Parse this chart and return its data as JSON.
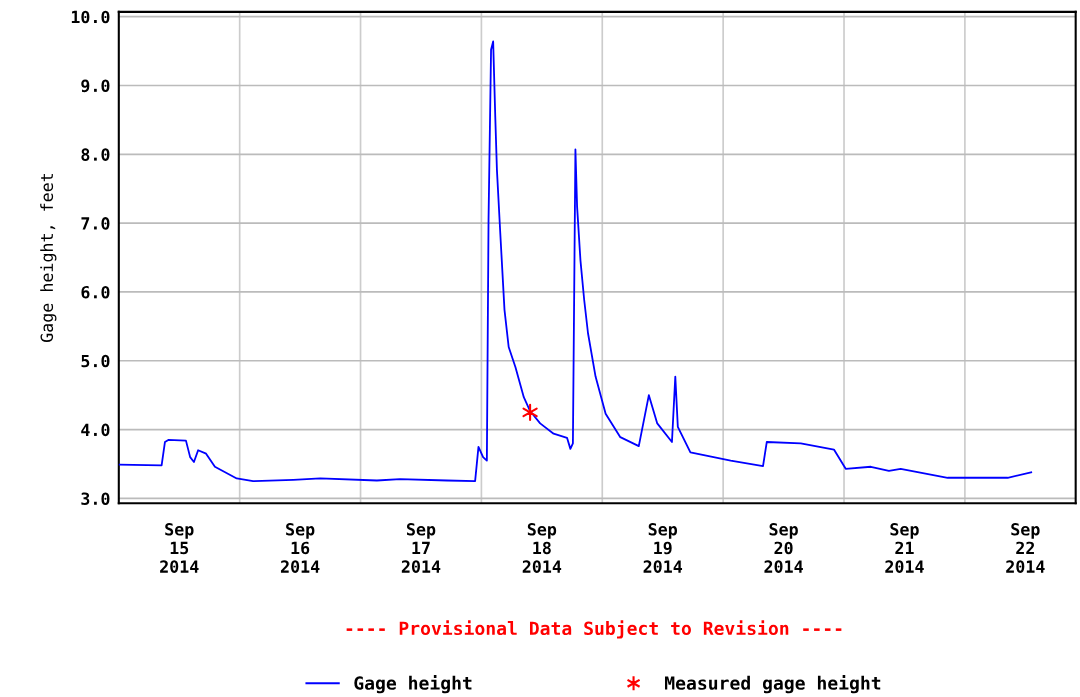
{
  "chart_data": {
    "type": "line",
    "ylabel": "Gage height, feet",
    "annotations": [
      "---- Provisional Data Subject to Revision ----"
    ],
    "xlim": [
      "2014-09-15T00:00",
      "2014-09-22T22:00"
    ],
    "xticks": [
      {
        "value": "2014-09-15T12:00",
        "label": "Sep\n15\n2014"
      },
      {
        "value": "2014-09-16T12:00",
        "label": "Sep\n16\n2014"
      },
      {
        "value": "2014-09-17T12:00",
        "label": "Sep\n17\n2014"
      },
      {
        "value": "2014-09-18T12:00",
        "label": "Sep\n18\n2014"
      },
      {
        "value": "2014-09-19T12:00",
        "label": "Sep\n19\n2014"
      },
      {
        "value": "2014-09-20T12:00",
        "label": "Sep\n20\n2014"
      },
      {
        "value": "2014-09-21T12:00",
        "label": "Sep\n21\n2014"
      },
      {
        "value": "2014-09-22T12:00",
        "label": "Sep\n22\n2014"
      },
      {
        "value": "2014-09-16T00:00",
        "label": null
      },
      {
        "value": "2014-09-17T00:00",
        "label": null
      },
      {
        "value": "2014-09-18T00:00",
        "label": null
      },
      {
        "value": "2014-09-19T00:00",
        "label": null
      },
      {
        "value": "2014-09-20T00:00",
        "label": null
      },
      {
        "value": "2014-09-21T00:00",
        "label": null
      },
      {
        "value": "2014-09-22T00:00",
        "label": null
      }
    ],
    "ylim": [
      2.93,
      10.07
    ],
    "yticks": [
      {
        "value": 3,
        "label": "3.0"
      },
      {
        "value": 4,
        "label": "4.0"
      },
      {
        "value": 5,
        "label": "5.0"
      },
      {
        "value": 6,
        "label": "6.0"
      },
      {
        "value": 7,
        "label": "7.0"
      },
      {
        "value": 8,
        "label": "8.0"
      },
      {
        "value": 9,
        "label": "9.0"
      },
      {
        "value": 10,
        "label": "10.0"
      }
    ],
    "grid": true,
    "legend": "bottom",
    "series": [
      {
        "name": "Gage height",
        "color": "#0000ff",
        "marker": "none",
        "line_style": "solid",
        "x": [
          "2014-09-15T00:00",
          "2014-09-15T08:30",
          "2014-09-15T09:10",
          "2014-09-15T09:50",
          "2014-09-15T13:20",
          "2014-09-15T14:10",
          "2014-09-15T14:55",
          "2014-09-15T15:45",
          "2014-09-15T17:20",
          "2014-09-15T19:05",
          "2014-09-15T23:25",
          "2014-09-16T02:40",
          "2014-09-16T10:40",
          "2014-09-16T16:00",
          "2014-09-17T03:15",
          "2014-09-17T07:50",
          "2014-09-17T17:10",
          "2014-09-17T22:45",
          "2014-09-17T23:25",
          "2014-09-18T00:20",
          "2014-09-18T01:05",
          "2014-09-18T01:25",
          "2014-09-18T01:55",
          "2014-09-18T02:20",
          "2014-09-18T02:45",
          "2014-09-18T03:05",
          "2014-09-18T03:45",
          "2014-09-18T04:35",
          "2014-09-18T05:25",
          "2014-09-18T06:45",
          "2014-09-18T08:25",
          "2014-09-18T09:40",
          "2014-09-18T11:40",
          "2014-09-18T14:20",
          "2014-09-18T17:00",
          "2014-09-18T17:40",
          "2014-09-18T18:10",
          "2014-09-18T18:40",
          "2014-09-18T19:00",
          "2014-09-18T19:40",
          "2014-09-18T20:25",
          "2014-09-18T21:10",
          "2014-09-18T22:40",
          "2014-09-19T00:40",
          "2014-09-19T03:35",
          "2014-09-19T07:15",
          "2014-09-19T09:15",
          "2014-09-19T10:55",
          "2014-09-19T13:50",
          "2014-09-19T14:30",
          "2014-09-19T15:00",
          "2014-09-19T17:30",
          "2014-09-20T01:30",
          "2014-09-20T07:55",
          "2014-09-20T08:40",
          "2014-09-20T15:25",
          "2014-09-20T22:00",
          "2014-09-21T00:20",
          "2014-09-21T05:20",
          "2014-09-21T08:55",
          "2014-09-21T11:15",
          "2014-09-21T20:35",
          "2014-09-22T08:30",
          "2014-09-22T13:10"
        ],
        "values": [
          3.49,
          3.48,
          3.82,
          3.85,
          3.84,
          3.6,
          3.53,
          3.7,
          3.65,
          3.46,
          3.29,
          3.25,
          3.27,
          3.29,
          3.26,
          3.28,
          3.26,
          3.25,
          3.75,
          3.6,
          3.55,
          7.05,
          9.52,
          9.64,
          8.55,
          7.77,
          6.85,
          5.74,
          5.2,
          4.91,
          4.47,
          4.27,
          4.09,
          3.94,
          3.88,
          3.72,
          3.8,
          8.07,
          7.24,
          6.46,
          5.88,
          5.4,
          4.77,
          4.23,
          3.89,
          3.76,
          4.5,
          4.09,
          3.82,
          4.77,
          4.04,
          3.67,
          3.55,
          3.47,
          3.82,
          3.8,
          3.71,
          3.43,
          3.46,
          3.4,
          3.43,
          3.3,
          3.3,
          3.38
        ]
      },
      {
        "name": "Measured gage height",
        "type": "scatter",
        "color": "#ff0000",
        "marker": "cross",
        "x": [
          "2014-09-18T09:40"
        ],
        "values": [
          4.25
        ]
      }
    ]
  }
}
